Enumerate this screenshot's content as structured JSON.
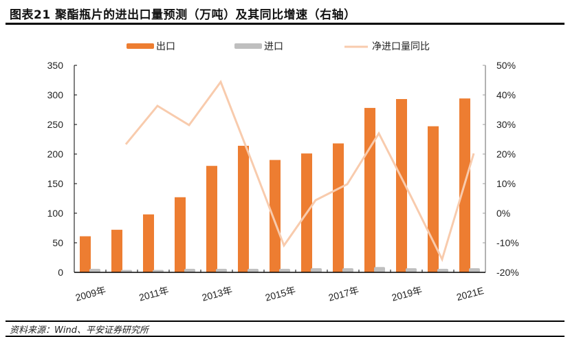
{
  "title": "图表21   聚酯瓶片的进出口量预测（万吨）及其同比增速（右轴）",
  "source": "资料来源：Wind、平安证券研究所",
  "colors": {
    "export": "#ED7D31",
    "import": "#BFBFBF",
    "line": "#F8CBAD"
  },
  "legend": [
    {
      "label": "出口",
      "type": "bar",
      "color": "#ED7D31"
    },
    {
      "label": "进口",
      "type": "bar",
      "color": "#BFBFBF"
    },
    {
      "label": "净进口量同比",
      "type": "line",
      "color": "#F8CBAD"
    }
  ],
  "chart_data": {
    "type": "bar",
    "title": "聚酯瓶片的进出口量预测（万吨）及其同比增速（右轴）",
    "categories": [
      "2009年",
      "2010年",
      "2011年",
      "2012年",
      "2013年",
      "2014年",
      "2015年",
      "2016年",
      "2017年",
      "2018年",
      "2019年",
      "2020年",
      "2021E"
    ],
    "xtick_labels": [
      "2009年",
      "2011年",
      "2013年",
      "2015年",
      "2017年",
      "2019年",
      "2021E"
    ],
    "series": [
      {
        "name": "出口",
        "type": "bar",
        "axis": "left",
        "values": [
          61,
          72,
          98,
          127,
          180,
          214,
          190,
          201,
          218,
          278,
          293,
          247,
          294
        ]
      },
      {
        "name": "进口",
        "type": "bar",
        "axis": "left",
        "values": [
          6,
          4,
          4,
          6,
          6,
          6,
          6,
          7,
          7,
          9,
          7,
          6,
          7
        ]
      },
      {
        "name": "净进口量同比",
        "type": "line",
        "axis": "right",
        "values": [
          null,
          23.3,
          36.3,
          29.8,
          44.4,
          17.0,
          -10.9,
          4.4,
          9.8,
          27.0,
          6.0,
          -15.6,
          20.2
        ]
      }
    ],
    "ylim_left": [
      0,
      350
    ],
    "yticks_left": [
      0,
      50,
      100,
      150,
      200,
      250,
      300,
      350
    ],
    "ylim_right": [
      -20,
      50
    ],
    "yticks_right": [
      "-20%",
      "-10%",
      "0%",
      "10%",
      "20%",
      "30%",
      "40%",
      "50%"
    ],
    "xlabel": "",
    "ylabel": "万吨",
    "y2label": "%",
    "grid": false,
    "legend_position": "top"
  }
}
